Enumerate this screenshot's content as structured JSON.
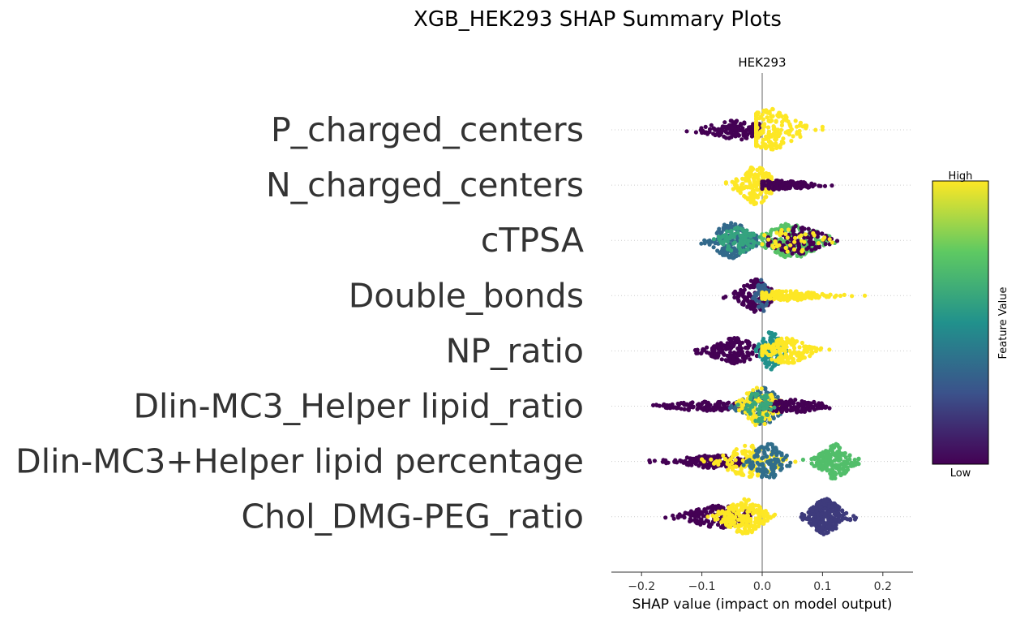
{
  "chart_data": {
    "type": "scatter",
    "subtype": "shap_beeswarm",
    "suptitle": "XGB_HEK293 SHAP Summary Plots",
    "title": "HEK293",
    "xlabel": "SHAP value (impact on model output)",
    "xlim": [
      -0.25,
      0.25
    ],
    "xticks": [
      -0.2,
      -0.1,
      0.0,
      0.1,
      0.2
    ],
    "xtick_labels": [
      "−0.2",
      "−0.1",
      "0.0",
      "0.1",
      "0.2"
    ],
    "zero_line": true,
    "colormap": "viridis",
    "colorbar": {
      "label": "Feature Value",
      "high_label": "High",
      "low_label": "Low"
    },
    "features": [
      {
        "name": "P_charged_centers",
        "clusters": [
          {
            "min": -0.145,
            "max": -0.005,
            "center": -0.04,
            "spread": 0.035,
            "n": 150,
            "value": 0.0,
            "half_height": 12
          },
          {
            "min": -0.01,
            "max": 0.1,
            "center": 0.012,
            "spread": 0.03,
            "n": 200,
            "value": 1.0,
            "half_height": 26
          }
        ]
      },
      {
        "name": "N_charged_centers",
        "clusters": [
          {
            "min": -0.06,
            "max": 0.015,
            "center": -0.01,
            "spread": 0.018,
            "n": 170,
            "value": 1.0,
            "half_height": 24
          },
          {
            "min": 0.0,
            "max": 0.145,
            "center": 0.03,
            "spread": 0.035,
            "n": 130,
            "value": 0.0,
            "half_height": 6
          }
        ]
      },
      {
        "name": "cTPSA",
        "clusters": [
          {
            "min": -0.11,
            "max": -0.01,
            "center": -0.05,
            "spread": 0.022,
            "n": 180,
            "value": 0.34,
            "half_height": 22
          },
          {
            "min": -0.08,
            "max": 0.0,
            "center": -0.04,
            "spread": 0.02,
            "n": 90,
            "value": 0.58,
            "half_height": 16
          },
          {
            "min": 0.0,
            "max": 0.14,
            "center": 0.05,
            "spread": 0.03,
            "n": 200,
            "value": 0.72,
            "half_height": 22
          },
          {
            "min": 0.01,
            "max": 0.14,
            "center": 0.06,
            "spread": 0.03,
            "n": 110,
            "value": 0.0,
            "half_height": 18
          },
          {
            "min": 0.0,
            "max": 0.12,
            "center": 0.05,
            "spread": 0.03,
            "n": 40,
            "value": 1.0,
            "half_height": 16
          }
        ]
      },
      {
        "name": "Double_bonds",
        "clusters": [
          {
            "min": -0.075,
            "max": 0.015,
            "center": -0.01,
            "spread": 0.018,
            "n": 140,
            "value": 0.0,
            "half_height": 20
          },
          {
            "min": -0.015,
            "max": 0.015,
            "center": 0.0,
            "spread": 0.007,
            "n": 50,
            "value": 0.3,
            "half_height": 20
          },
          {
            "min": 0.0,
            "max": 0.18,
            "center": 0.04,
            "spread": 0.04,
            "n": 180,
            "value": 1.0,
            "half_height": 6
          }
        ]
      },
      {
        "name": "NP_ratio",
        "clusters": [
          {
            "min": -0.135,
            "max": 0.0,
            "center": -0.045,
            "spread": 0.025,
            "n": 180,
            "value": 0.0,
            "half_height": 16
          },
          {
            "min": -0.01,
            "max": 0.04,
            "center": 0.015,
            "spread": 0.012,
            "n": 120,
            "value": 0.5,
            "half_height": 24
          },
          {
            "min": 0.0,
            "max": 0.12,
            "center": 0.04,
            "spread": 0.025,
            "n": 170,
            "value": 1.0,
            "half_height": 16
          }
        ]
      },
      {
        "name": "Dlin-MC3_Helper lipid_ratio",
        "clusters": [
          {
            "min": -0.25,
            "max": -0.02,
            "center": -0.09,
            "spread": 0.045,
            "n": 130,
            "value": 0.0,
            "half_height": 6
          },
          {
            "min": -0.06,
            "max": 0.04,
            "center": 0.0,
            "spread": 0.02,
            "n": 150,
            "value": 0.35,
            "half_height": 24
          },
          {
            "min": -0.05,
            "max": 0.04,
            "center": -0.005,
            "spread": 0.02,
            "n": 110,
            "value": 1.0,
            "half_height": 24
          },
          {
            "min": 0.0,
            "max": 0.175,
            "center": 0.05,
            "spread": 0.035,
            "n": 130,
            "value": 0.0,
            "half_height": 8
          },
          {
            "min": -0.04,
            "max": 0.03,
            "center": -0.005,
            "spread": 0.015,
            "n": 50,
            "value": 0.6,
            "half_height": 20
          }
        ]
      },
      {
        "name": "Dlin-MC3+Helper lipid percentage",
        "clusters": [
          {
            "min": -0.22,
            "max": -0.02,
            "center": -0.08,
            "spread": 0.04,
            "n": 170,
            "value": 0.0,
            "half_height": 8
          },
          {
            "min": -0.1,
            "max": 0.07,
            "center": -0.02,
            "spread": 0.03,
            "n": 120,
            "value": 1.0,
            "half_height": 20
          },
          {
            "min": -0.04,
            "max": 0.05,
            "center": 0.01,
            "spread": 0.018,
            "n": 120,
            "value": 0.36,
            "half_height": 22
          },
          {
            "min": 0.055,
            "max": 0.16,
            "center": 0.12,
            "spread": 0.017,
            "n": 180,
            "value": 0.7,
            "half_height": 22
          }
        ]
      },
      {
        "name": "Chol_DMG-PEG_ratio",
        "clusters": [
          {
            "min": -0.2,
            "max": -0.02,
            "center": -0.07,
            "spread": 0.035,
            "n": 190,
            "value": 0.0,
            "half_height": 14
          },
          {
            "min": -0.09,
            "max": 0.04,
            "center": -0.03,
            "spread": 0.022,
            "n": 190,
            "value": 1.0,
            "half_height": 22
          },
          {
            "min": 0.06,
            "max": 0.185,
            "center": 0.105,
            "spread": 0.018,
            "n": 260,
            "value": 0.18,
            "half_height": 22
          }
        ]
      }
    ]
  }
}
